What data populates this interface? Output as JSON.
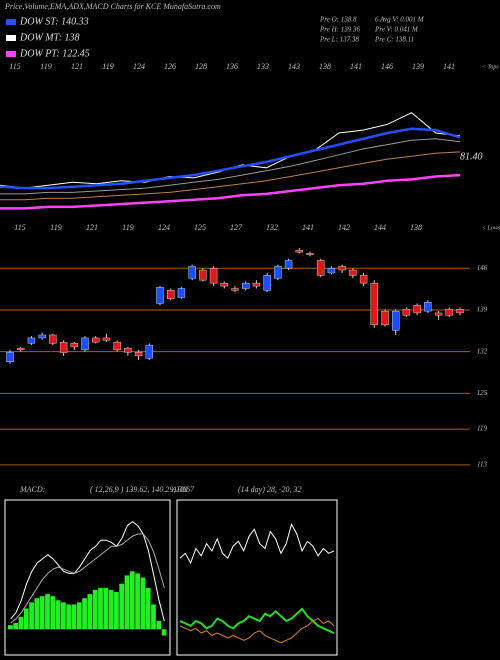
{
  "header": {
    "title": "Price,Volume,EMA,ADX,MACD Charts for KCE MunafaSutra.com",
    "legend": [
      {
        "name": "DOW ST: 140.33",
        "color": "#2050ff"
      },
      {
        "name": "DOW MT: 138",
        "color": "#ffffff"
      },
      {
        "name": "DOW PT: 122.45",
        "color": "#ff40ff"
      }
    ],
    "info": [
      "Pre O: 138.8",
      "6 Avg V: 0.001 M",
      "Pre H: 139.36",
      "Pre V: 0.041 M",
      "Pre L: 137.38",
      "Pre C: 138.11"
    ]
  },
  "chart_data": [
    {
      "type": "ema",
      "top_labels": [
        "115",
        "119",
        "121",
        "119",
        "124",
        "126",
        "128",
        "136",
        "133",
        "143",
        "138",
        "141",
        "146",
        "139",
        "141"
      ],
      "bottom_labels": [
        "115",
        "119",
        "121",
        "119",
        "124",
        "125",
        "127",
        "132",
        "141",
        "142",
        "144",
        "138"
      ],
      "tops_label": "< Tops",
      "lows_label": "< Lows",
      "annotation": "81.40",
      "ylim": [
        0,
        100
      ],
      "series": [
        {
          "color": "#ffffff",
          "values": [
            24,
            22,
            24,
            26,
            25,
            27,
            26,
            30,
            29,
            33,
            38,
            36,
            44,
            48,
            60,
            62,
            66,
            74,
            60,
            58
          ]
        },
        {
          "color": "#999999",
          "values": [
            18,
            18,
            19,
            19,
            20,
            21,
            22,
            24,
            26,
            28,
            31,
            34,
            37,
            41,
            45,
            49,
            52,
            55,
            56,
            54
          ]
        },
        {
          "color": "#c08040",
          "values": [
            14,
            14,
            15,
            15,
            16,
            17,
            18,
            19,
            21,
            23,
            25,
            27,
            30,
            33,
            36,
            39,
            42,
            44,
            46,
            47
          ]
        },
        {
          "color": "#2050ff",
          "values": [
            23,
            22,
            22,
            23,
            24,
            25,
            27,
            29,
            31,
            34,
            37,
            40,
            44,
            48,
            52,
            56,
            60,
            63,
            62,
            57
          ]
        },
        {
          "color": "#ff40ff",
          "values": [
            8,
            8,
            9,
            9,
            10,
            11,
            12,
            13,
            14,
            15,
            17,
            18,
            20,
            22,
            24,
            25,
            27,
            28,
            30,
            31
          ]
        }
      ]
    },
    {
      "type": "candlestick",
      "up_color": "#1a4fff",
      "down_color": "#e01818",
      "grid_color": "#b05a10",
      "ylim": [
        111.3,
        149.9
      ],
      "yticks": [
        146,
        139,
        132,
        125,
        119,
        113
      ],
      "open": [
        130.3,
        132.6,
        133.4,
        134.3,
        134.8,
        133.6,
        133.4,
        132.3,
        134.3,
        134.3,
        133.6,
        132.6,
        131.9,
        130.9,
        140.1,
        142.3,
        141.1,
        144.3,
        145.7,
        146.0,
        143.5,
        142.6,
        142.6,
        143.5,
        142.3,
        144.3,
        146.0,
        149.0,
        148.5,
        147.3,
        145.2,
        146.3,
        145.7,
        144.8,
        143.5,
        138.8,
        135.6,
        139.1,
        139.8,
        138.8,
        138.5,
        139.1,
        139.1
      ],
      "high": [
        132.3,
        132.8,
        134.6,
        135.2,
        135.0,
        133.9,
        133.6,
        134.6,
        134.6,
        135.0,
        133.9,
        132.8,
        132.3,
        133.4,
        143.0,
        142.6,
        142.8,
        146.6,
        146.0,
        146.3,
        143.8,
        143.0,
        143.8,
        144.0,
        145.2,
        146.6,
        147.6,
        149.4,
        148.8,
        147.6,
        146.3,
        146.6,
        146.0,
        145.2,
        144.0,
        139.1,
        139.1,
        139.4,
        140.1,
        140.6,
        138.8,
        139.4,
        139.4
      ],
      "low": [
        130.0,
        132.0,
        133.1,
        134.0,
        133.1,
        131.3,
        132.3,
        132.0,
        133.4,
        133.6,
        132.0,
        131.3,
        130.6,
        130.6,
        139.8,
        140.6,
        140.9,
        144.0,
        143.8,
        143.0,
        142.6,
        142.0,
        142.3,
        142.6,
        142.0,
        144.0,
        145.7,
        148.5,
        148.0,
        144.5,
        145.0,
        145.2,
        144.3,
        143.0,
        136.0,
        136.2,
        134.8,
        137.8,
        138.1,
        138.5,
        137.3,
        137.8,
        138.1
      ],
      "close": [
        131.9,
        132.3,
        134.3,
        134.8,
        133.4,
        131.8,
        132.8,
        134.3,
        133.6,
        133.9,
        132.3,
        131.9,
        131.3,
        133.1,
        142.8,
        140.9,
        142.6,
        146.3,
        144.0,
        143.5,
        143.0,
        142.3,
        143.5,
        143.0,
        144.8,
        146.3,
        147.3,
        148.7,
        148.3,
        144.8,
        146.0,
        145.7,
        144.8,
        143.5,
        136.5,
        136.5,
        138.8,
        138.1,
        138.5,
        140.3,
        138.1,
        138.1,
        138.5
      ]
    },
    {
      "type": "macd",
      "title": "MACD:",
      "subtitle": "( 12,26,9 ) 139.62, 140.29, -0.67",
      "ylim": [
        -1,
        6
      ],
      "hist_color": "#22ee22",
      "histogram": [
        0.2,
        0.3,
        0.6,
        1.0,
        1.3,
        1.5,
        1.6,
        1.7,
        1.6,
        1.4,
        1.3,
        1.2,
        1.2,
        1.3,
        1.5,
        1.7,
        1.9,
        2.0,
        2.0,
        1.9,
        1.8,
        2.2,
        2.6,
        2.8,
        2.7,
        2.5,
        2.0,
        1.2,
        0.4,
        -0.3
      ],
      "series": [
        {
          "color": "#ffffff",
          "values": [
            0.5,
            0.8,
            1.4,
            2.2,
            2.8,
            3.2,
            3.4,
            3.6,
            3.4,
            3.1,
            2.8,
            2.7,
            2.7,
            3.0,
            3.4,
            3.8,
            4.0,
            4.3,
            4.3,
            4.2,
            4.0,
            4.4,
            5.0,
            5.2,
            5.0,
            4.6,
            3.8,
            2.6,
            1.4,
            0.4
          ]
        },
        {
          "color": "#aaaaaa",
          "values": [
            0.3,
            0.5,
            0.8,
            1.2,
            1.6,
            2.0,
            2.4,
            2.7,
            2.9,
            3.0,
            2.9,
            2.8,
            2.7,
            2.8,
            3.0,
            3.2,
            3.4,
            3.6,
            3.8,
            4.0,
            4.0,
            4.1,
            4.3,
            4.5,
            4.6,
            4.6,
            4.3,
            3.7,
            2.9,
            2.0
          ]
        }
      ]
    },
    {
      "type": "adx",
      "title": "ADX",
      "subtitle": "(14 day) 28, -20, 32",
      "ylim": [
        0,
        60
      ],
      "series": [
        {
          "color": "#ffffff",
          "values": [
            38,
            40,
            36,
            42,
            39,
            44,
            41,
            46,
            40,
            38,
            43,
            45,
            41,
            47,
            50,
            44,
            42,
            49,
            46,
            40,
            44,
            52,
            48,
            41,
            45,
            43,
            39,
            42,
            40,
            41
          ]
        },
        {
          "color": "#22dd22",
          "values": [
            12,
            11,
            10,
            12,
            11,
            9,
            10,
            13,
            12,
            10,
            9,
            11,
            12,
            14,
            13,
            12,
            15,
            14,
            16,
            14,
            12,
            13,
            15,
            17,
            14,
            12,
            10,
            9,
            8,
            7
          ]
        },
        {
          "color": "#e08020",
          "values": [
            10,
            9,
            8,
            9,
            7,
            8,
            6,
            7,
            6,
            5,
            6,
            5,
            4,
            5,
            7,
            8,
            6,
            5,
            4,
            3,
            4,
            5,
            7,
            9,
            10,
            12,
            13,
            11,
            12,
            10
          ]
        }
      ]
    }
  ]
}
